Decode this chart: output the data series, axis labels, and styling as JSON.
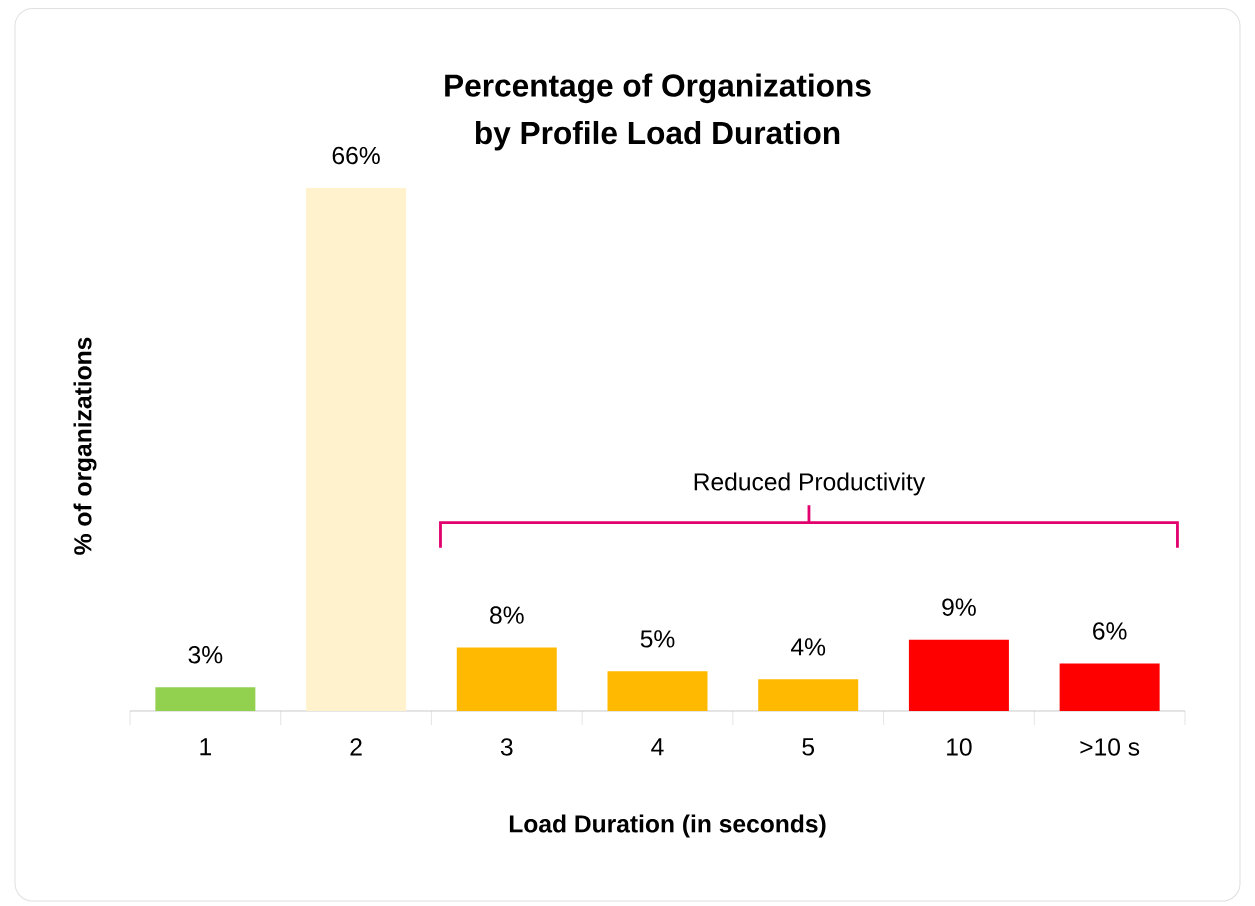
{
  "chart_data": {
    "type": "bar",
    "title": "Percentage of Organizations\nby Profile Load Duration",
    "xlabel": "Load Duration (in seconds)",
    "ylabel": "% of organizations",
    "categories": [
      "1",
      "2",
      "3",
      "4",
      "5",
      "10",
      ">10 s"
    ],
    "values": [
      3,
      66,
      8,
      5,
      4,
      9,
      6
    ],
    "colors": [
      "#92d050",
      "#fff2cc",
      "#ffb900",
      "#ffb900",
      "#ffb900",
      "#ff0000",
      "#ff0000"
    ],
    "value_labels": [
      "3%",
      "66%",
      "8%",
      "5%",
      "4%",
      "9%",
      "6%"
    ],
    "annotations": [
      "Reduced Productivity"
    ],
    "grid": false
  }
}
